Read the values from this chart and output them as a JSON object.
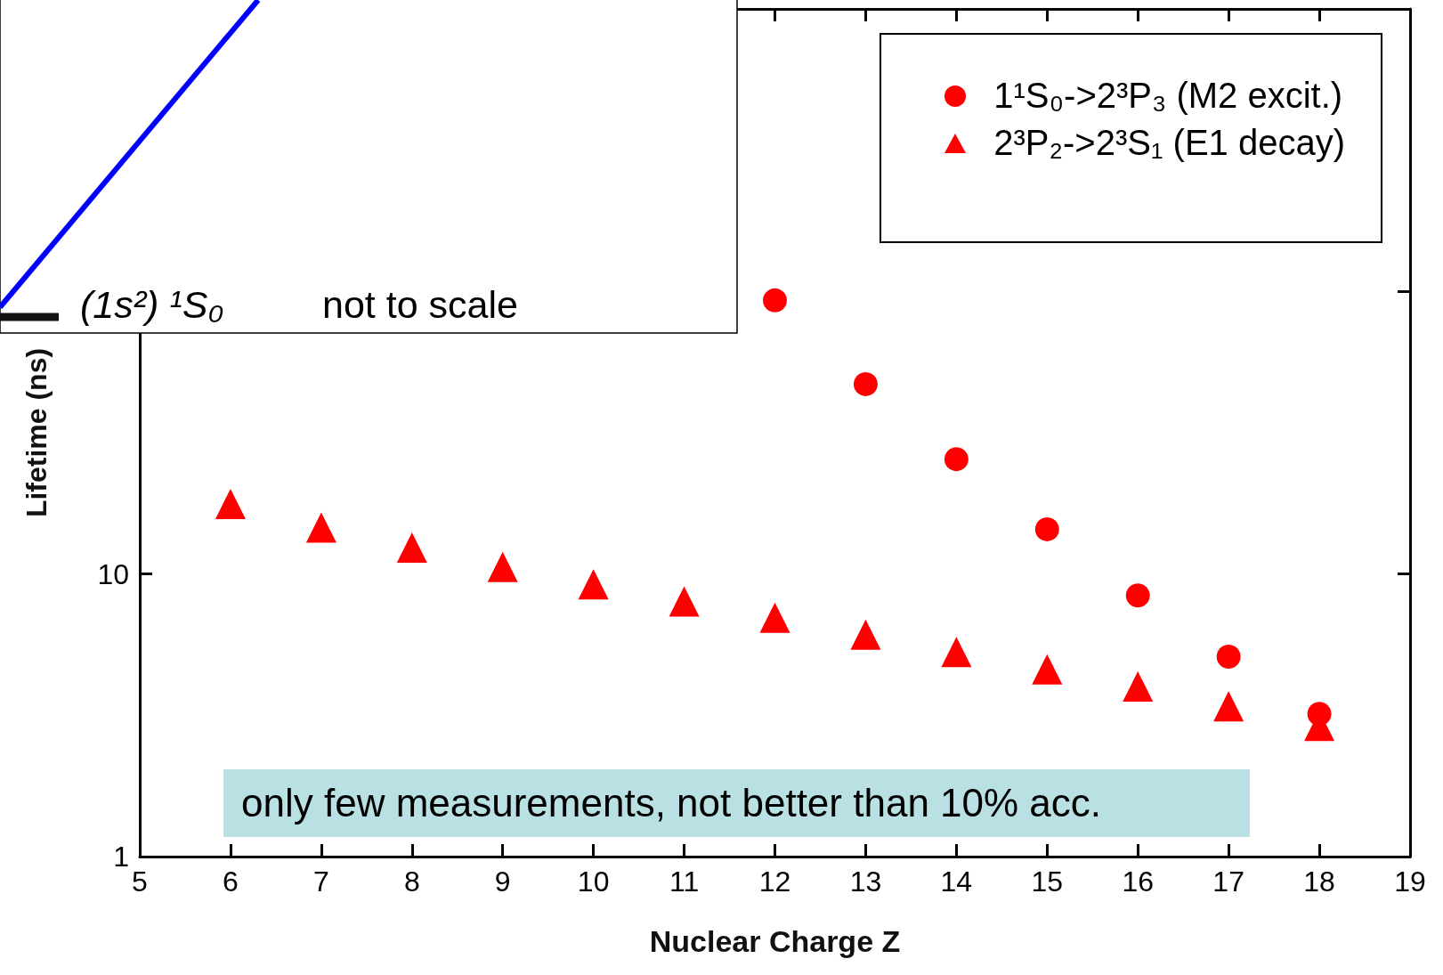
{
  "chart_data": {
    "type": "scatter",
    "xlabel": "Nuclear Charge Z",
    "ylabel": "Lifetime (ns)",
    "xlim": [
      5,
      19
    ],
    "xticks": [
      5,
      6,
      7,
      8,
      9,
      10,
      11,
      12,
      13,
      14,
      15,
      16,
      17,
      18,
      19
    ],
    "ylim": [
      1,
      1000
    ],
    "yticks": [
      1,
      10,
      {
        "value": 100,
        "label": null
      },
      {
        "value": 1000,
        "label": null
      }
    ],
    "log": "y",
    "grid": false,
    "legend": "top right",
    "series": [
      {
        "name": "1¹S₀->2³P₃ (M2 excit.)",
        "color": "#ff0000",
        "marker": "circle",
        "x": [
          12,
          13,
          14,
          15,
          16,
          17,
          18
        ],
        "values": [
          93,
          47,
          25.5,
          14.4,
          8.4,
          5.1,
          3.2
        ]
      },
      {
        "name": "2³P₂->2³S₁ (E1 decay)",
        "color": "#ff0000",
        "marker": "triangle",
        "x": [
          6,
          7,
          8,
          9,
          10,
          11,
          12,
          13,
          14,
          15,
          16,
          17,
          18
        ],
        "values": [
          17.7,
          14.6,
          12.4,
          10.6,
          9.2,
          8.0,
          7.0,
          6.1,
          5.3,
          4.6,
          4.0,
          3.4,
          2.9
        ]
      }
    ],
    "annotations": [
      "(1s²) ¹S₀",
      "not to scale",
      "only few measurements, not better than 10% acc."
    ]
  }
}
